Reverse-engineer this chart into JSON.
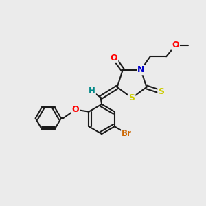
{
  "bg_color": "#ebebeb",
  "bond_color": "#1a1a1a",
  "bond_width": 1.5,
  "atom_colors": {
    "O": "#ff0000",
    "N": "#0000cc",
    "S_yellow": "#cccc00",
    "Br": "#cc6600",
    "H": "#008888"
  },
  "figsize": [
    3.0,
    3.0
  ],
  "dpi": 100
}
